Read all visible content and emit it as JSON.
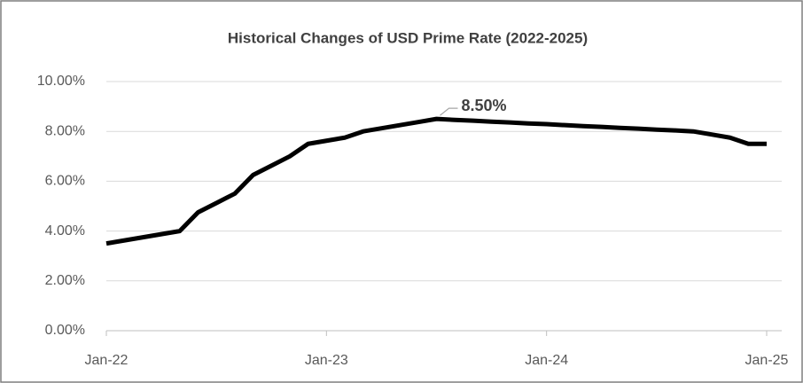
{
  "chart_data": {
    "type": "line",
    "title": "Historical Changes of USD Prime Rate (2022-2025)",
    "categories": [
      "Jan-22",
      null,
      null,
      null,
      null,
      null,
      null,
      null,
      null,
      null,
      null,
      null,
      "Jan-23",
      null,
      null,
      null,
      null,
      null,
      null,
      null,
      null,
      null,
      null,
      null,
      "Jan-24",
      null,
      null,
      null,
      null,
      null,
      null,
      null,
      null,
      null,
      null,
      null,
      "Jan-25"
    ],
    "series": [
      {
        "name": "USD Prime Rate",
        "color": "#000000",
        "values": [
          3.5,
          3.625,
          3.75,
          3.875,
          4.0,
          4.75,
          5.125,
          5.5,
          6.25,
          6.625,
          7.0,
          7.5,
          7.625,
          7.75,
          8.0,
          8.125,
          8.25,
          8.375,
          8.5,
          8.46,
          8.43,
          8.39,
          8.36,
          8.32,
          8.29,
          8.25,
          8.21,
          8.18,
          8.14,
          8.11,
          8.07,
          8.04,
          8.0,
          7.875,
          7.75,
          7.5,
          7.5
        ],
        "value_labels": [
          null,
          null,
          null,
          null,
          null,
          null,
          null,
          null,
          null,
          null,
          null,
          null,
          null,
          null,
          null,
          null,
          null,
          null,
          "8.50%",
          null,
          null,
          null,
          null,
          null,
          null,
          null,
          null,
          null,
          null,
          null,
          null,
          null,
          null,
          null,
          null,
          null,
          null
        ]
      }
    ],
    "ylim": [
      0,
      10
    ],
    "yticks": [
      {
        "value": 0,
        "label": "0.00%"
      },
      {
        "value": 2,
        "label": "2.00%"
      },
      {
        "value": 4,
        "label": "4.00%"
      },
      {
        "value": 6,
        "label": "6.00%"
      },
      {
        "value": 8,
        "label": "8.00%"
      },
      {
        "value": 10,
        "label": "10.00%"
      }
    ],
    "grid": true
  }
}
